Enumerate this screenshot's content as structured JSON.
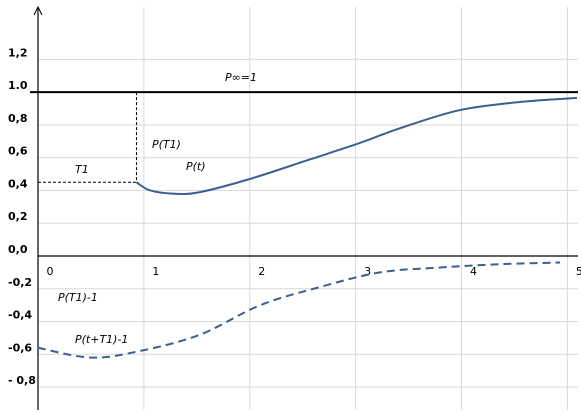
{
  "chart_data": {
    "type": "line",
    "annotations": [
      "P∞=1",
      "T1",
      "P(T1)",
      "P(t)",
      "P(T1)-1",
      "P(t+T1)-1"
    ],
    "reference_line": 1,
    "xlim": [
      0,
      5.1
    ],
    "xticks": [
      0,
      1,
      2,
      3,
      4,
      5
    ],
    "ylim": [
      -0.94,
      1.52
    ],
    "yticks": [
      {
        "value": -0.8,
        "label": "- 0,8"
      },
      {
        "value": -0.6,
        "label": "-0,6"
      },
      {
        "value": -0.4,
        "label": "-0,4"
      },
      {
        "value": -0.2,
        "label": "-0,2"
      },
      {
        "value": 0,
        "label": "0,0"
      },
      {
        "value": 0.2,
        "label": "0,2"
      },
      {
        "value": 0.4,
        "label": "0,4"
      },
      {
        "value": 0.6,
        "label": "0,6"
      },
      {
        "value": 0.8,
        "label": "0,8"
      },
      {
        "value": 1,
        "label": "1.0"
      },
      {
        "value": 1.2,
        "label": "1,2"
      }
    ],
    "grid": true,
    "series": [
      {
        "name": "P(t)",
        "color": "#3c5f92",
        "dash": false,
        "x": [
          0.93,
          1.06,
          1.29,
          1.53,
          2.0,
          2.57,
          3.04,
          3.42,
          3.98,
          4.55,
          5.09
        ],
        "values": [
          0.45,
          0.4,
          0.38,
          0.39,
          0.47,
          0.59,
          0.69,
          0.78,
          0.89,
          0.94,
          0.965
        ]
      },
      {
        "name": "P(t+T1)-1",
        "color": "#3c5f92",
        "dash": true,
        "x": [
          0,
          0.5,
          0.96,
          1.53,
          2.1,
          2.66,
          3.23,
          3.8,
          4.36,
          4.93
        ],
        "values": [
          -0.56,
          -0.62,
          -0.58,
          -0.48,
          -0.3,
          -0.19,
          -0.1,
          -0.07,
          -0.05,
          -0.04
        ]
      }
    ]
  }
}
